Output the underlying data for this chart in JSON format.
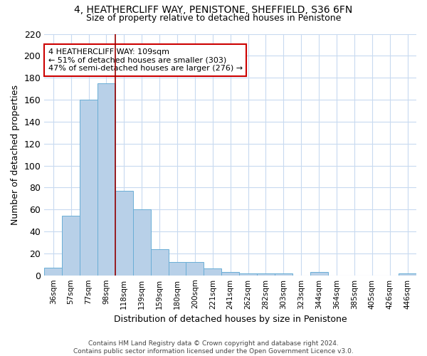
{
  "title": "4, HEATHERCLIFF WAY, PENISTONE, SHEFFIELD, S36 6FN",
  "subtitle": "Size of property relative to detached houses in Penistone",
  "xlabel": "Distribution of detached houses by size in Penistone",
  "ylabel": "Number of detached properties",
  "categories": [
    "36sqm",
    "57sqm",
    "77sqm",
    "98sqm",
    "118sqm",
    "139sqm",
    "159sqm",
    "180sqm",
    "200sqm",
    "221sqm",
    "241sqm",
    "262sqm",
    "282sqm",
    "303sqm",
    "323sqm",
    "344sqm",
    "364sqm",
    "385sqm",
    "405sqm",
    "426sqm",
    "446sqm"
  ],
  "values": [
    7,
    54,
    160,
    175,
    77,
    60,
    24,
    12,
    12,
    6,
    3,
    2,
    2,
    2,
    0,
    3,
    0,
    0,
    0,
    0,
    2
  ],
  "bar_color": "#b8d0e8",
  "bar_edge_color": "#6aaed6",
  "property_line_color": "#990000",
  "annotation_text": "4 HEATHERCLIFF WAY: 109sqm\n← 51% of detached houses are smaller (303)\n47% of semi-detached houses are larger (276) →",
  "annotation_box_color": "#ffffff",
  "annotation_box_edge": "#cc0000",
  "ylim": [
    0,
    220
  ],
  "yticks": [
    0,
    20,
    40,
    60,
    80,
    100,
    120,
    140,
    160,
    180,
    200,
    220
  ],
  "footnote": "Contains HM Land Registry data © Crown copyright and database right 2024.\nContains public sector information licensed under the Open Government Licence v3.0.",
  "bg_color": "#ffffff",
  "grid_color": "#c8daf0"
}
